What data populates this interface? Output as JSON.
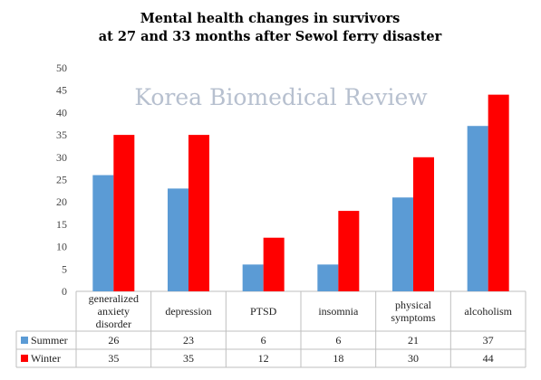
{
  "watermark_text": "Korea Biomedical Review",
  "chart_data": {
    "type": "bar",
    "title": [
      "Mental health changes in survivors",
      "at 27 and 33 months after Sewol ferry disaster"
    ],
    "xlabel": "",
    "ylabel": "",
    "ylim": [
      0,
      50
    ],
    "yticks": [
      0,
      5,
      10,
      15,
      20,
      25,
      30,
      35,
      40,
      45,
      50
    ],
    "grid": false,
    "legend": "data-table-left",
    "categories": [
      [
        "generalized",
        "anxiety",
        "disorder"
      ],
      [
        "depression"
      ],
      [
        "PTSD"
      ],
      [
        "insomnia"
      ],
      [
        "physical",
        "symptoms"
      ],
      [
        "alcoholism"
      ]
    ],
    "series": [
      {
        "name": "Summer",
        "color": "#5b9bd5",
        "values": [
          26,
          23,
          6,
          6,
          21,
          37
        ]
      },
      {
        "name": "Winter",
        "color": "#ff0000",
        "values": [
          35,
          35,
          12,
          18,
          30,
          44
        ]
      }
    ]
  }
}
